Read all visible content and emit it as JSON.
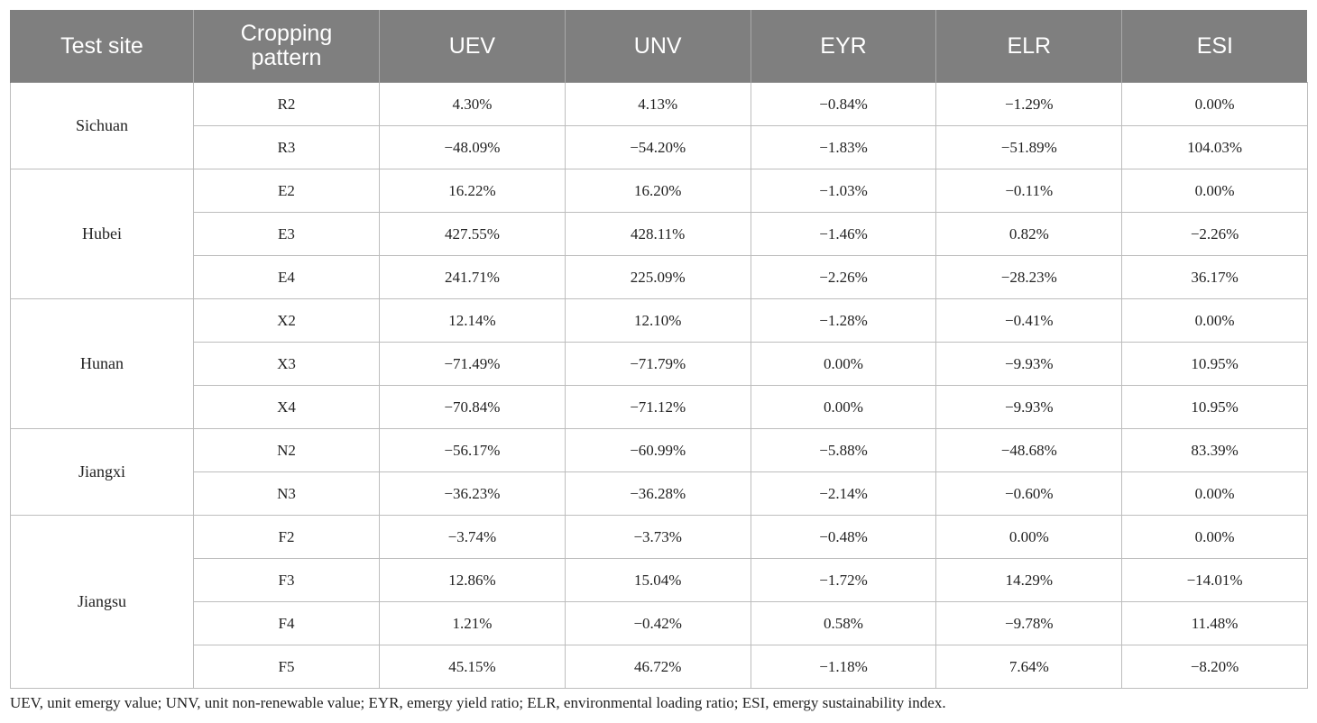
{
  "table": {
    "headers": [
      "Test site",
      "Cropping\npattern",
      "UEV",
      "UNV",
      "EYR",
      "ELR",
      "ESI"
    ],
    "groups": [
      {
        "site": "Sichuan",
        "rows": [
          [
            "R2",
            "4.30%",
            "4.13%",
            "−0.84%",
            "−1.29%",
            "0.00%"
          ],
          [
            "R3",
            "−48.09%",
            "−54.20%",
            "−1.83%",
            "−51.89%",
            "104.03%"
          ]
        ]
      },
      {
        "site": "Hubei",
        "rows": [
          [
            "E2",
            "16.22%",
            "16.20%",
            "−1.03%",
            "−0.11%",
            "0.00%"
          ],
          [
            "E3",
            "427.55%",
            "428.11%",
            "−1.46%",
            "0.82%",
            "−2.26%"
          ],
          [
            "E4",
            "241.71%",
            "225.09%",
            "−2.26%",
            "−28.23%",
            "36.17%"
          ]
        ]
      },
      {
        "site": "Hunan",
        "rows": [
          [
            "X2",
            "12.14%",
            "12.10%",
            "−1.28%",
            "−0.41%",
            "0.00%"
          ],
          [
            "X3",
            "−71.49%",
            "−71.79%",
            "0.00%",
            "−9.93%",
            "10.95%"
          ],
          [
            "X4",
            "−70.84%",
            "−71.12%",
            "0.00%",
            "−9.93%",
            "10.95%"
          ]
        ]
      },
      {
        "site": "Jiangxi",
        "rows": [
          [
            "N2",
            "−56.17%",
            "−60.99%",
            "−5.88%",
            "−48.68%",
            "83.39%"
          ],
          [
            "N3",
            "−36.23%",
            "−36.28%",
            "−2.14%",
            "−0.60%",
            "0.00%"
          ]
        ]
      },
      {
        "site": "Jiangsu",
        "rows": [
          [
            "F2",
            "−3.74%",
            "−3.73%",
            "−0.48%",
            "0.00%",
            "0.00%"
          ],
          [
            "F3",
            "12.86%",
            "15.04%",
            "−1.72%",
            "14.29%",
            "−14.01%"
          ],
          [
            "F4",
            "1.21%",
            "−0.42%",
            "0.58%",
            "−9.78%",
            "11.48%"
          ],
          [
            "F5",
            "45.15%",
            "46.72%",
            "−1.18%",
            "7.64%",
            "−8.20%"
          ]
        ]
      }
    ]
  },
  "footnote": "UEV, unit emergy value; UNV, unit non-renewable value; EYR, emergy yield ratio; ELR, environmental loading ratio; ESI, emergy sustainability index."
}
